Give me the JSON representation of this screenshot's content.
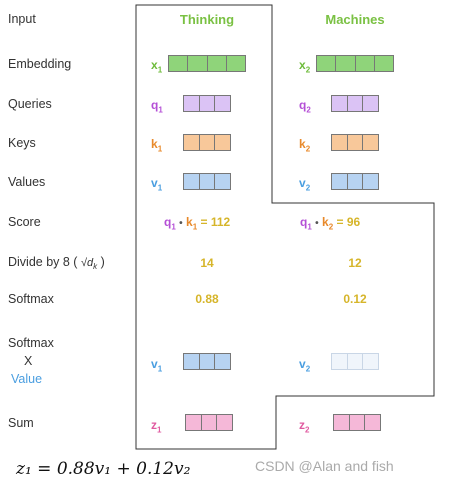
{
  "rows": {
    "input": "Input",
    "embedding": "Embedding",
    "queries": "Queries",
    "keys": "Keys",
    "values": "Values",
    "score": "Score",
    "divide": "Divide by 8 (",
    "divide_sqrt": "√d",
    "divide_sub": "k",
    "divide_close": ")",
    "softmax": "Softmax",
    "softmax_x_1": "Softmax",
    "softmax_x_2": "X",
    "softmax_x_3": "Value",
    "sum": "Sum"
  },
  "words": {
    "w1": "Thinking",
    "w2": "Machines"
  },
  "symbols": {
    "x": "x",
    "q": "q",
    "k": "k",
    "v": "v",
    "z": "z",
    "s1": "1",
    "s2": "2",
    "dot": "•",
    "eq": "="
  },
  "values": {
    "score1": "112",
    "score2": "96",
    "div1": "14",
    "div2": "12",
    "soft1": "0.88",
    "soft2": "0.12"
  },
  "formula": "z₁ = 0.88v₁ + 0.12v₂",
  "watermark": "CSDN @Alan and fish",
  "colors": {
    "accent_green": "#7ac143",
    "query_purple": "#b44fd6",
    "key_orange": "#e8892a",
    "value_blue": "#4a9ee0",
    "output_pink": "#e05aa0",
    "number_yellow": "#d6b52a"
  }
}
